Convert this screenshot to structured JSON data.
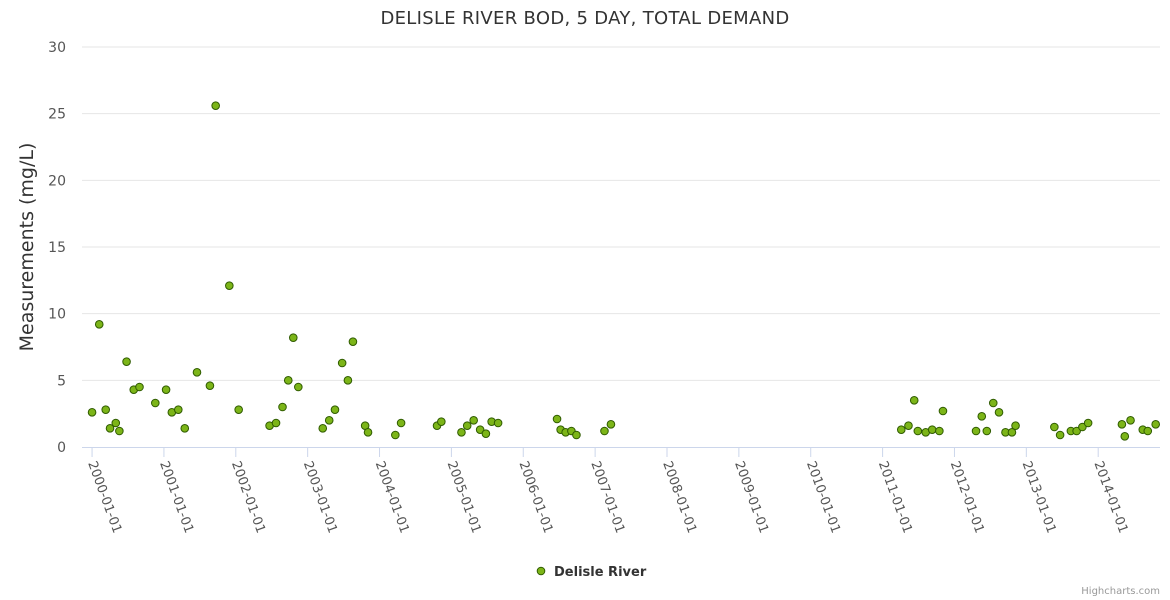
{
  "chart_data": {
    "type": "scatter",
    "title": "DELISLE RIVER BOD, 5 DAY, TOTAL DEMAND",
    "ylabel": "Measurements (mg/L)",
    "xlabel": "",
    "ylim": [
      0,
      30
    ],
    "yticks": [
      0,
      5,
      10,
      15,
      20,
      25,
      30
    ],
    "xlim": [
      1999.86,
      2014.86
    ],
    "xticks": [
      {
        "value": 2000,
        "label": "2000-01-01"
      },
      {
        "value": 2001,
        "label": "2001-01-01"
      },
      {
        "value": 2002,
        "label": "2002-01-01"
      },
      {
        "value": 2003,
        "label": "2003-01-01"
      },
      {
        "value": 2004,
        "label": "2004-01-01"
      },
      {
        "value": 2005,
        "label": "2005-01-01"
      },
      {
        "value": 2006,
        "label": "2006-01-01"
      },
      {
        "value": 2007,
        "label": "2007-01-01"
      },
      {
        "value": 2008,
        "label": "2008-01-01"
      },
      {
        "value": 2009,
        "label": "2009-01-01"
      },
      {
        "value": 2010,
        "label": "2010-01-01"
      },
      {
        "value": 2011,
        "label": "2011-01-01"
      },
      {
        "value": 2012,
        "label": "2012-01-01"
      },
      {
        "value": 2013,
        "label": "2013-01-01"
      },
      {
        "value": 2014,
        "label": "2014-01-01"
      }
    ],
    "grid": true,
    "legend_position": "bottom-center",
    "series": [
      {
        "name": "Delisle River",
        "color": "#7cb518",
        "points": [
          {
            "x": 2000.0,
            "y": 2.6
          },
          {
            "x": 2000.1,
            "y": 9.2
          },
          {
            "x": 2000.19,
            "y": 2.8
          },
          {
            "x": 2000.25,
            "y": 1.4
          },
          {
            "x": 2000.33,
            "y": 1.8
          },
          {
            "x": 2000.38,
            "y": 1.2
          },
          {
            "x": 2000.48,
            "y": 6.4
          },
          {
            "x": 2000.58,
            "y": 4.3
          },
          {
            "x": 2000.66,
            "y": 4.5
          },
          {
            "x": 2000.88,
            "y": 3.3
          },
          {
            "x": 2001.03,
            "y": 4.3
          },
          {
            "x": 2001.11,
            "y": 2.6
          },
          {
            "x": 2001.2,
            "y": 2.8
          },
          {
            "x": 2001.29,
            "y": 1.4
          },
          {
            "x": 2001.46,
            "y": 5.6
          },
          {
            "x": 2001.64,
            "y": 4.6
          },
          {
            "x": 2001.72,
            "y": 25.6
          },
          {
            "x": 2001.91,
            "y": 12.1
          },
          {
            "x": 2002.04,
            "y": 2.8
          },
          {
            "x": 2002.47,
            "y": 1.6
          },
          {
            "x": 2002.56,
            "y": 1.8
          },
          {
            "x": 2002.65,
            "y": 3.0
          },
          {
            "x": 2002.73,
            "y": 5.0
          },
          {
            "x": 2002.8,
            "y": 8.2
          },
          {
            "x": 2002.87,
            "y": 4.5
          },
          {
            "x": 2003.21,
            "y": 1.4
          },
          {
            "x": 2003.3,
            "y": 2.0
          },
          {
            "x": 2003.38,
            "y": 2.8
          },
          {
            "x": 2003.48,
            "y": 6.3
          },
          {
            "x": 2003.56,
            "y": 5.0
          },
          {
            "x": 2003.63,
            "y": 7.9
          },
          {
            "x": 2003.8,
            "y": 1.6
          },
          {
            "x": 2003.84,
            "y": 1.1
          },
          {
            "x": 2004.22,
            "y": 0.9
          },
          {
            "x": 2004.3,
            "y": 1.8
          },
          {
            "x": 2004.8,
            "y": 1.6
          },
          {
            "x": 2004.86,
            "y": 1.9
          },
          {
            "x": 2005.14,
            "y": 1.1
          },
          {
            "x": 2005.22,
            "y": 1.6
          },
          {
            "x": 2005.31,
            "y": 2.0
          },
          {
            "x": 2005.4,
            "y": 1.3
          },
          {
            "x": 2005.48,
            "y": 1.0
          },
          {
            "x": 2005.56,
            "y": 1.9
          },
          {
            "x": 2005.65,
            "y": 1.8
          },
          {
            "x": 2006.47,
            "y": 2.1
          },
          {
            "x": 2006.52,
            "y": 1.3
          },
          {
            "x": 2006.59,
            "y": 1.1
          },
          {
            "x": 2006.67,
            "y": 1.2
          },
          {
            "x": 2006.74,
            "y": 0.9
          },
          {
            "x": 2007.13,
            "y": 1.2
          },
          {
            "x": 2007.22,
            "y": 1.7
          },
          {
            "x": 2011.26,
            "y": 1.3
          },
          {
            "x": 2011.36,
            "y": 1.6
          },
          {
            "x": 2011.44,
            "y": 3.5
          },
          {
            "x": 2011.49,
            "y": 1.2
          },
          {
            "x": 2011.6,
            "y": 1.1
          },
          {
            "x": 2011.69,
            "y": 1.3
          },
          {
            "x": 2011.79,
            "y": 1.2
          },
          {
            "x": 2011.84,
            "y": 2.7
          },
          {
            "x": 2012.3,
            "y": 1.2
          },
          {
            "x": 2012.38,
            "y": 2.3
          },
          {
            "x": 2012.45,
            "y": 1.2
          },
          {
            "x": 2012.54,
            "y": 3.3
          },
          {
            "x": 2012.62,
            "y": 2.6
          },
          {
            "x": 2012.71,
            "y": 1.1
          },
          {
            "x": 2012.8,
            "y": 1.1
          },
          {
            "x": 2012.85,
            "y": 1.6
          },
          {
            "x": 2013.39,
            "y": 1.5
          },
          {
            "x": 2013.47,
            "y": 0.9
          },
          {
            "x": 2013.62,
            "y": 1.2
          },
          {
            "x": 2013.7,
            "y": 1.2
          },
          {
            "x": 2013.78,
            "y": 1.5
          },
          {
            "x": 2013.86,
            "y": 1.8
          },
          {
            "x": 2014.33,
            "y": 1.7
          },
          {
            "x": 2014.37,
            "y": 0.8
          },
          {
            "x": 2014.45,
            "y": 2.0
          },
          {
            "x": 2014.62,
            "y": 1.3
          },
          {
            "x": 2014.69,
            "y": 1.2
          },
          {
            "x": 2014.8,
            "y": 1.7
          }
        ]
      }
    ]
  },
  "credits": "Highcharts.com"
}
